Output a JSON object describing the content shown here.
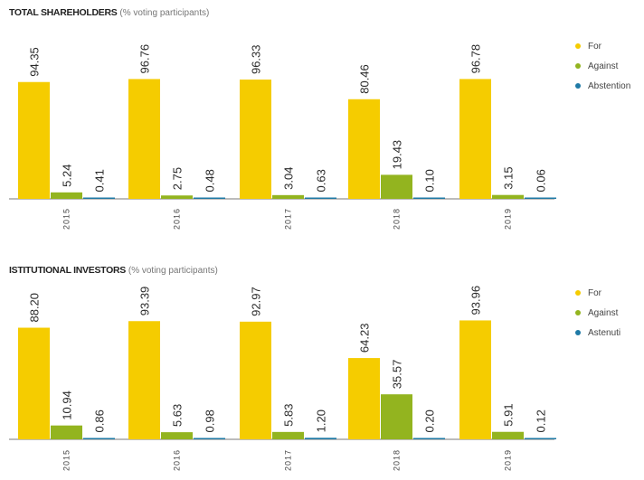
{
  "chart_data": [
    {
      "type": "bar",
      "title": "TOTAL SHAREHOLDERS",
      "subtitle": "(% voting participants)",
      "categories": [
        "2015",
        "2016",
        "2017",
        "2018",
        "2019"
      ],
      "series": [
        {
          "name": "For",
          "color": "#f5cc00",
          "values": [
            94.35,
            96.76,
            96.33,
            80.46,
            96.78
          ],
          "labels": [
            "94.35",
            "96.76",
            "96.33",
            "80.46",
            "96.78"
          ]
        },
        {
          "name": "Against",
          "color": "#93b41f",
          "values": [
            5.24,
            2.75,
            3.04,
            19.43,
            3.15
          ],
          "labels": [
            "5.24",
            "2.75",
            "3.04",
            "19.43",
            "3.15"
          ]
        },
        {
          "name": "Abstention",
          "color": "#1f7aa6",
          "values": [
            0.41,
            0.48,
            0.63,
            0.1,
            0.06
          ],
          "labels": [
            "0.41",
            "0.48",
            "0.63",
            "0.10",
            "0.06"
          ]
        }
      ],
      "ylim": [
        0,
        100
      ],
      "legend": "right",
      "grid": false
    },
    {
      "type": "bar",
      "title": "ISTITUTIONAL INVESTORS",
      "subtitle": "(% voting participants)",
      "categories": [
        "2015",
        "2016",
        "2017",
        "2018",
        "2019"
      ],
      "series": [
        {
          "name": "For",
          "color": "#f5cc00",
          "values": [
            88.2,
            93.39,
            92.97,
            64.23,
            93.96
          ],
          "labels": [
            "88.20",
            "93.39",
            "92.97",
            "64.23",
            "93.96"
          ]
        },
        {
          "name": "Against",
          "color": "#93b41f",
          "values": [
            10.94,
            5.63,
            5.83,
            35.57,
            5.91
          ],
          "labels": [
            "10.94",
            "5.63",
            "5.83",
            "35.57",
            "5.91"
          ]
        },
        {
          "name": "Astenuti",
          "color": "#1f7aa6",
          "values": [
            0.86,
            0.98,
            1.2,
            0.2,
            0.12
          ],
          "labels": [
            "0.86",
            "0.98",
            "1.20",
            "0.20",
            "0.12"
          ]
        }
      ],
      "ylim": [
        0,
        100
      ],
      "legend": "right",
      "grid": false
    }
  ]
}
